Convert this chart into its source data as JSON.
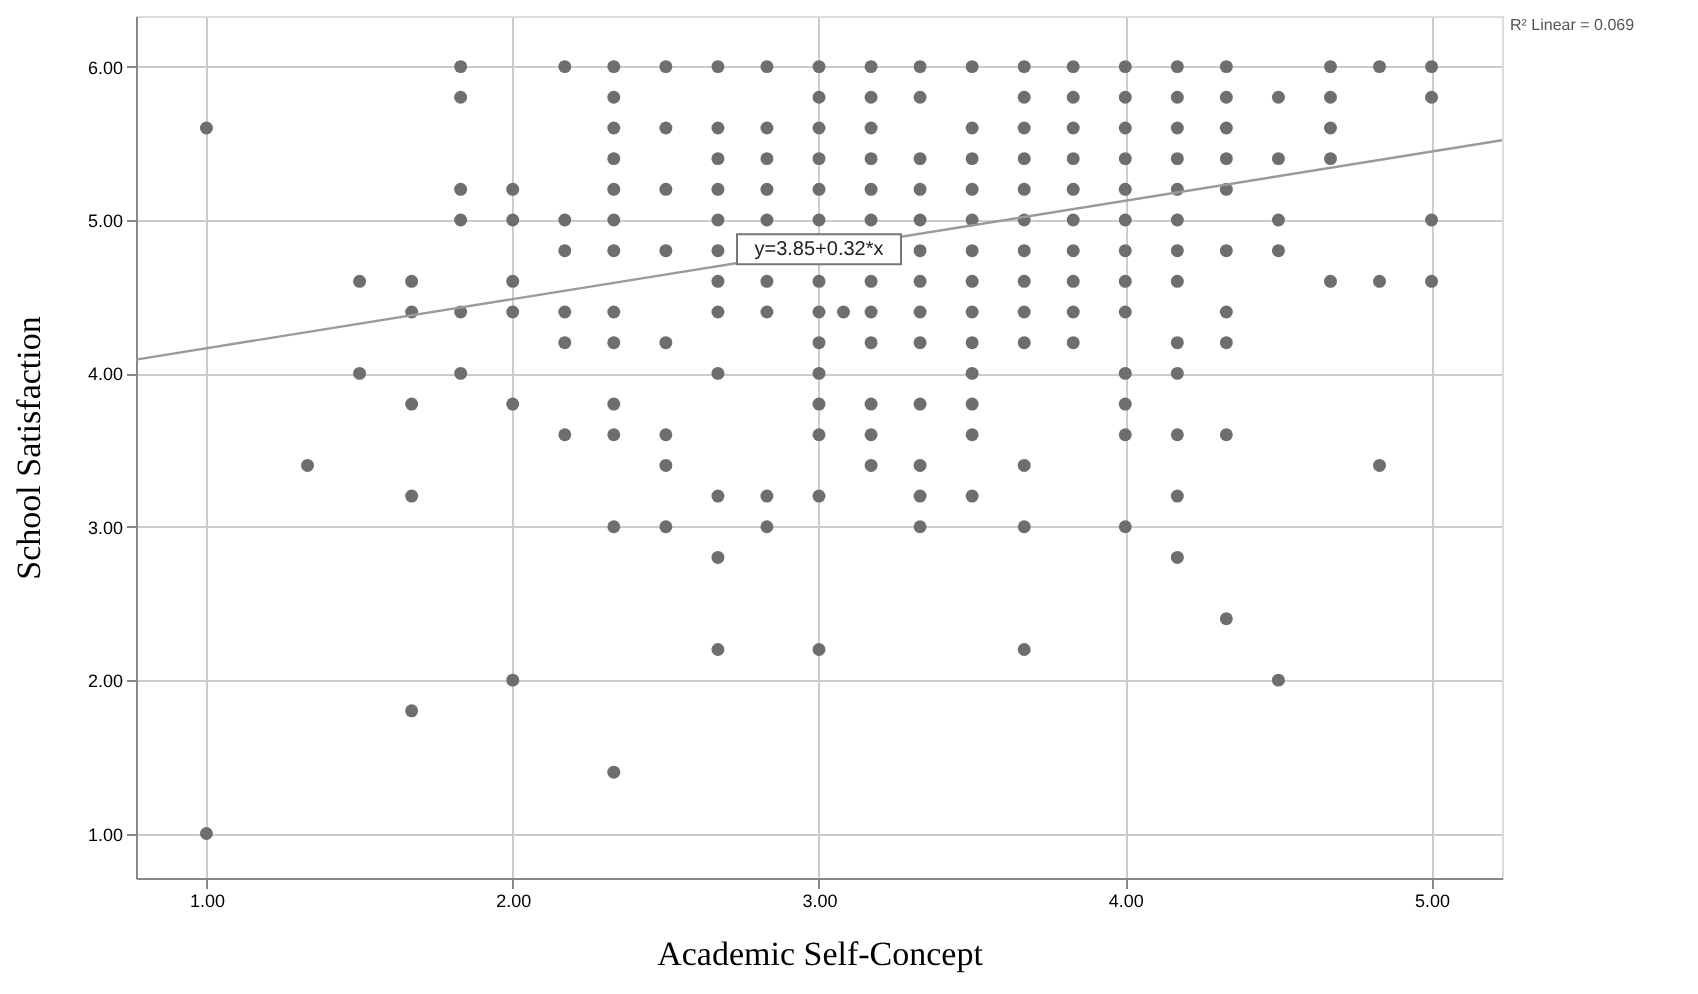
{
  "chart_data": {
    "type": "scatter",
    "xlabel": "Academic Self-Concept",
    "ylabel": "School Satisfaction",
    "xlim": [
      0.77,
      5.23
    ],
    "ylim": [
      0.71,
      6.33
    ],
    "xticks": [
      {
        "value": 1,
        "label": "1.00"
      },
      {
        "value": 2,
        "label": "2.00"
      },
      {
        "value": 3,
        "label": "3.00"
      },
      {
        "value": 4,
        "label": "4.00"
      },
      {
        "value": 5,
        "label": "5.00"
      }
    ],
    "yticks": [
      {
        "value": 1,
        "label": "1.00"
      },
      {
        "value": 2,
        "label": "2.00"
      },
      {
        "value": 3,
        "label": "3.00"
      },
      {
        "value": 4,
        "label": "4.00"
      },
      {
        "value": 5,
        "label": "5.00"
      },
      {
        "value": 6,
        "label": "6.00"
      }
    ],
    "grid": true,
    "annotations": [
      "R² Linear = 0.069",
      {
        "text": "y=3.85+0.32*x",
        "x": 3.0,
        "y": 4.81
      }
    ],
    "series": [
      {
        "marker": "circle",
        "color": "#6e6e6e",
        "x": [
          1.0,
          1.0,
          1.33,
          1.5,
          1.5,
          1.67,
          1.67,
          1.67,
          1.67,
          1.67,
          1.83,
          1.83,
          1.83,
          1.83,
          1.83,
          1.83,
          2.0,
          2.0,
          2.0,
          2.0,
          2.0,
          2.0,
          2.17,
          2.17,
          2.17,
          2.17,
          2.17,
          2.17,
          2.33,
          2.33,
          2.33,
          2.33,
          2.33,
          2.33,
          2.33,
          2.33,
          2.33,
          2.33,
          2.33,
          2.33,
          2.33,
          2.5,
          2.5,
          2.5,
          2.5,
          2.5,
          2.5,
          2.5,
          2.5,
          2.67,
          2.67,
          2.67,
          2.67,
          2.67,
          2.67,
          2.67,
          2.67,
          2.67,
          2.67,
          2.67,
          2.67,
          2.83,
          2.83,
          2.83,
          2.83,
          2.83,
          2.83,
          2.83,
          2.83,
          2.83,
          3.0,
          3.0,
          3.0,
          3.0,
          3.0,
          3.0,
          3.0,
          3.0,
          3.0,
          3.0,
          3.0,
          3.0,
          3.0,
          3.0,
          3.08,
          3.17,
          3.17,
          3.17,
          3.17,
          3.17,
          3.17,
          3.17,
          3.17,
          3.17,
          3.17,
          3.17,
          3.17,
          3.33,
          3.33,
          3.33,
          3.33,
          3.33,
          3.33,
          3.33,
          3.33,
          3.33,
          3.33,
          3.33,
          3.33,
          3.33,
          3.5,
          3.5,
          3.5,
          3.5,
          3.5,
          3.5,
          3.5,
          3.5,
          3.5,
          3.5,
          3.5,
          3.5,
          3.5,
          3.67,
          3.67,
          3.67,
          3.67,
          3.67,
          3.67,
          3.67,
          3.67,
          3.67,
          3.67,
          3.67,
          3.67,
          3.67,
          3.83,
          3.83,
          3.83,
          3.83,
          3.83,
          3.83,
          3.83,
          3.83,
          3.83,
          3.83,
          4.0,
          4.0,
          4.0,
          4.0,
          4.0,
          4.0,
          4.0,
          4.0,
          4.0,
          4.0,
          4.0,
          4.0,
          4.0,
          4.17,
          4.17,
          4.17,
          4.17,
          4.17,
          4.17,
          4.17,
          4.17,
          4.17,
          4.17,
          4.17,
          4.17,
          4.17,
          4.33,
          4.33,
          4.33,
          4.33,
          4.33,
          4.33,
          4.33,
          4.33,
          4.33,
          4.33,
          4.5,
          4.5,
          4.5,
          4.5,
          4.5,
          4.67,
          4.67,
          4.67,
          4.67,
          4.67,
          4.83,
          4.83,
          4.83,
          5.0,
          5.0,
          5.0,
          5.0
        ],
        "values": [
          5.6,
          1.0,
          3.4,
          4.6,
          4.0,
          4.6,
          4.4,
          3.8,
          3.2,
          1.8,
          6.0,
          5.8,
          5.2,
          5.0,
          4.4,
          4.0,
          5.2,
          5.0,
          4.6,
          4.4,
          3.8,
          2.0,
          6.0,
          5.0,
          4.8,
          4.4,
          4.2,
          3.6,
          6.0,
          5.8,
          5.6,
          5.4,
          5.2,
          5.0,
          4.8,
          4.4,
          4.2,
          3.8,
          3.6,
          3.0,
          1.4,
          6.0,
          5.6,
          5.2,
          4.8,
          4.2,
          3.6,
          3.4,
          3.0,
          6.0,
          5.6,
          5.4,
          5.2,
          5.0,
          4.8,
          4.6,
          4.4,
          4.0,
          3.2,
          2.8,
          2.2,
          6.0,
          5.6,
          5.4,
          5.2,
          5.0,
          4.6,
          4.4,
          3.2,
          3.0,
          6.0,
          5.8,
          5.6,
          5.4,
          5.2,
          5.0,
          4.6,
          4.4,
          4.2,
          4.0,
          3.8,
          3.6,
          3.2,
          2.2,
          4.4,
          6.0,
          5.8,
          5.6,
          5.4,
          5.2,
          5.0,
          4.6,
          4.4,
          4.2,
          3.8,
          3.6,
          3.4,
          6.0,
          5.8,
          5.4,
          5.2,
          5.0,
          4.8,
          4.6,
          4.4,
          4.2,
          3.8,
          3.4,
          3.2,
          3.0,
          6.0,
          5.6,
          5.4,
          5.2,
          5.0,
          4.8,
          4.6,
          4.4,
          4.2,
          4.0,
          3.8,
          3.6,
          3.2,
          6.0,
          5.8,
          5.6,
          5.4,
          5.2,
          5.0,
          4.8,
          4.6,
          4.4,
          4.2,
          3.4,
          3.0,
          2.2,
          6.0,
          5.8,
          5.6,
          5.4,
          5.2,
          5.0,
          4.8,
          4.6,
          4.4,
          4.2,
          6.0,
          5.8,
          5.6,
          5.4,
          5.2,
          5.0,
          4.8,
          4.6,
          4.4,
          4.0,
          3.8,
          3.6,
          3.0,
          6.0,
          5.8,
          5.6,
          5.4,
          5.2,
          5.0,
          4.8,
          4.6,
          4.2,
          4.0,
          3.6,
          3.2,
          2.8,
          6.0,
          5.8,
          5.6,
          5.4,
          5.2,
          4.8,
          4.4,
          4.2,
          3.6,
          2.4,
          5.8,
          5.4,
          5.0,
          4.8,
          2.0,
          6.0,
          5.8,
          5.6,
          5.4,
          4.6,
          6.0,
          4.6,
          3.4,
          6.0,
          5.8,
          5.0,
          4.6
        ]
      },
      {
        "type": "line",
        "marker": "none",
        "line_style": "solid",
        "color": "#9a9a9a",
        "x": [
          0.77,
          5.23
        ],
        "values": [
          4.09,
          5.52
        ]
      }
    ]
  }
}
